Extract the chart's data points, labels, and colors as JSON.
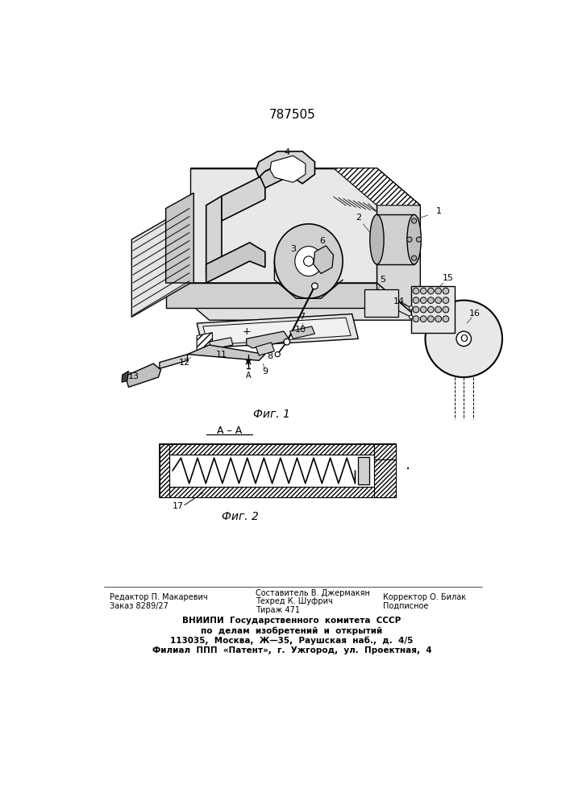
{
  "patent_number": "787505",
  "fig1_caption": "Фиг. 1",
  "fig2_caption": "Фиг. 2",
  "section_label": "А – А",
  "footer_left_line1": "Редактор П. Макаревич",
  "footer_left_line2": "Заказ 8289/27",
  "footer_mid_line1": "Составитель В. Джермакян",
  "footer_mid_line2": "Техред К. Шуфрич",
  "footer_mid_line3": "Тираж 471",
  "footer_right_line1": "Корректор О. Билак",
  "footer_right_line2": "Подписное",
  "footer_block_line1": "ВНИИПИ  Государственного  комитета  СССР",
  "footer_block_line2": "по  делам  изобретений  и  открытий",
  "footer_block_line3": "113035,  Москва,  Ж—35,  Раушская  наб.,  д.  4/5",
  "footer_block_line4": "Филиал  ППП  «Патент»,  г.  Ужгород,  ул.  Проектная,  4",
  "bg_color": "#ffffff",
  "lc": "#000000",
  "fig_width": 7.07,
  "fig_height": 10.0
}
